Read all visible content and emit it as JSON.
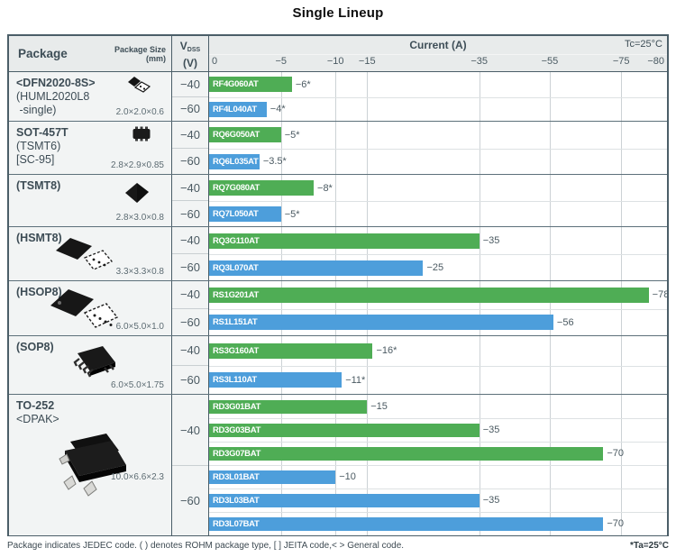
{
  "title": "Single Lineup",
  "header": {
    "package": "Package",
    "package_size": "Package Size",
    "package_size_unit": "(mm)",
    "vdss_v": "V",
    "vdss_sub": "DSS",
    "vdss_unit": "(V)",
    "current": "Current (A)",
    "tc": "Tc=25°C"
  },
  "footer": {
    "note": "Package indicates JEDEC code. ( ) denotes ROHM package type, [ ] JEITA code,< > General code.",
    "ta": "*Ta=25°C"
  },
  "chart_data": {
    "type": "bar",
    "orientation": "horizontal",
    "title": "Single Lineup",
    "value_axis_label": "Current (A)",
    "condition": "Tc=25°C",
    "footnote_condition": "*Ta=25°C",
    "xlim": [
      0,
      -80
    ],
    "grid": true,
    "ticks": [
      {
        "v": 0,
        "label": "0"
      },
      {
        "v": 5,
        "label": "−5"
      },
      {
        "v": 10,
        "label": "−10"
      },
      {
        "v": 15,
        "label": "−15"
      },
      {
        "v": 35,
        "label": "−35"
      },
      {
        "v": 55,
        "label": "−55"
      },
      {
        "v": 75,
        "label": "−75"
      },
      {
        "v": 80,
        "label": "−80"
      }
    ],
    "scale_stops": [
      [
        0,
        0
      ],
      [
        5,
        0.157
      ],
      [
        10,
        0.276
      ],
      [
        15,
        0.345
      ],
      [
        35,
        0.59
      ],
      [
        55,
        0.744
      ],
      [
        75,
        0.9
      ],
      [
        80,
        1.0
      ]
    ],
    "series_colors": {
      "green": "#4fad55",
      "blue": "#4d9edb"
    },
    "series_legend": {
      "green": "VDSS −40 V",
      "blue": "VDSS −60 V"
    },
    "groups": [
      {
        "package_lines": [
          {
            "text": "<DFN2020-8S>",
            "bold": true
          },
          {
            "text": "(HUML2020L8",
            "bold": false
          },
          {
            "text": " -single)",
            "bold": false
          }
        ],
        "size": "2.0×2.0×0.6",
        "icon": "chip-dfn2020-icon",
        "rows": [
          {
            "vdss": "−40",
            "parts": [
              {
                "name": "RF4G060AT",
                "value": -6,
                "label": "−6*",
                "color": "green"
              }
            ]
          },
          {
            "vdss": "−60",
            "parts": [
              {
                "name": "RF4L040AT",
                "value": -4,
                "label": "−4*",
                "color": "blue"
              }
            ]
          }
        ]
      },
      {
        "package_lines": [
          {
            "text": "SOT-457T",
            "bold": true
          },
          {
            "text": "(TSMT6)",
            "bold": false
          },
          {
            "text": "[SC-95]",
            "bold": false
          }
        ],
        "size": "2.8×2.9×0.85",
        "icon": "chip-sot457t-icon",
        "rows": [
          {
            "vdss": "−40",
            "parts": [
              {
                "name": "RQ6G050AT",
                "value": -5,
                "label": "−5*",
                "color": "green"
              }
            ]
          },
          {
            "vdss": "−60",
            "parts": [
              {
                "name": "RQ6L035AT",
                "value": -3.5,
                "label": "−3.5*",
                "color": "blue"
              }
            ]
          }
        ]
      },
      {
        "package_lines": [
          {
            "text": "(TSMT8)",
            "bold": true
          }
        ],
        "size": "2.8×3.0×0.8",
        "icon": "chip-tsmt8-icon",
        "rows": [
          {
            "vdss": "−40",
            "parts": [
              {
                "name": "RQ7G080AT",
                "value": -8,
                "label": "−8*",
                "color": "green"
              }
            ]
          },
          {
            "vdss": "−60",
            "parts": [
              {
                "name": "RQ7L050AT",
                "value": -5,
                "label": "−5*",
                "color": "blue"
              }
            ]
          }
        ]
      },
      {
        "package_lines": [
          {
            "text": "(HSMT8)",
            "bold": true
          }
        ],
        "size": "3.3×3.3×0.8",
        "icon": "chip-hsmt8-icon",
        "rows": [
          {
            "vdss": "−40",
            "parts": [
              {
                "name": "RQ3G110AT",
                "value": -35,
                "label": "−35",
                "color": "green"
              }
            ]
          },
          {
            "vdss": "−60",
            "parts": [
              {
                "name": "RQ3L070AT",
                "value": -25,
                "label": "−25",
                "color": "blue"
              }
            ]
          }
        ]
      },
      {
        "package_lines": [
          {
            "text": "(HSOP8)",
            "bold": true
          }
        ],
        "size": "6.0×5.0×1.0",
        "icon": "chip-hsop8-icon",
        "rows": [
          {
            "vdss": "−40",
            "parts": [
              {
                "name": "RS1G201AT",
                "value": -78,
                "label": "−78",
                "color": "green"
              }
            ]
          },
          {
            "vdss": "−60",
            "parts": [
              {
                "name": "RS1L151AT",
                "value": -56,
                "label": "−56",
                "color": "blue"
              }
            ]
          }
        ]
      },
      {
        "package_lines": [
          {
            "text": "(SOP8)",
            "bold": true
          }
        ],
        "size": "6.0×5.0×1.75",
        "icon": "chip-sop8-icon",
        "rows": [
          {
            "vdss": "−40",
            "parts": [
              {
                "name": "RS3G160AT",
                "value": -16,
                "label": "−16*",
                "color": "green"
              }
            ]
          },
          {
            "vdss": "−60",
            "parts": [
              {
                "name": "RS3L110AT",
                "value": -11,
                "label": "−11*",
                "color": "blue"
              }
            ]
          }
        ]
      },
      {
        "package_lines": [
          {
            "text": "TO-252",
            "bold": true
          },
          {
            "text": "<DPAK>",
            "bold": false
          }
        ],
        "size": "10.0×6.6×2.3",
        "icon": "chip-to252-icon",
        "rows": [
          {
            "vdss": "−40",
            "parts": [
              {
                "name": "RD3G01BAT",
                "value": -15,
                "label": "−15",
                "color": "green"
              },
              {
                "name": "RD3G03BAT",
                "value": -35,
                "label": "−35",
                "color": "green"
              },
              {
                "name": "RD3G07BAT",
                "value": -70,
                "label": "−70",
                "color": "green"
              }
            ]
          },
          {
            "vdss": "−60",
            "parts": [
              {
                "name": "RD3L01BAT",
                "value": -10,
                "label": "−10",
                "color": "blue"
              },
              {
                "name": "RD3L03BAT",
                "value": -35,
                "label": "−35",
                "color": "blue"
              },
              {
                "name": "RD3L07BAT",
                "value": -70,
                "label": "−70",
                "color": "blue"
              }
            ]
          }
        ]
      }
    ]
  }
}
